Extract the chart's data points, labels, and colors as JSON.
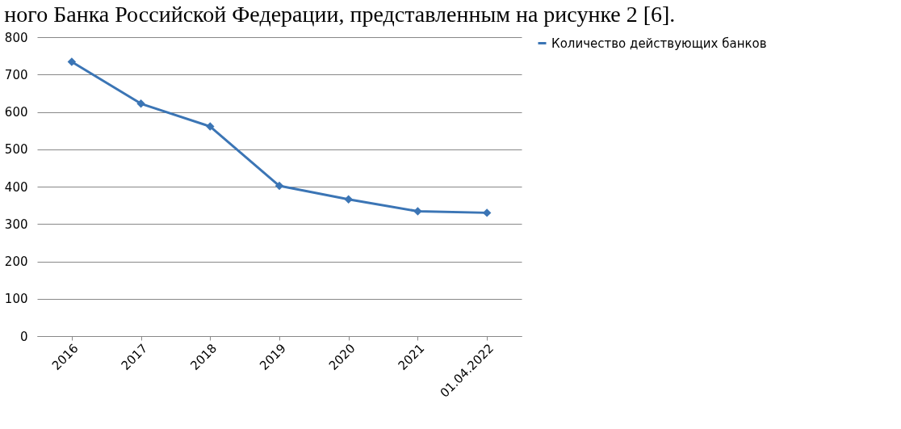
{
  "chart_data": {
    "type": "line",
    "annotations": [
      "ного Банка Российской Федерации, представленным на рисунке 2 [6]."
    ],
    "categories": [
      "2016",
      "2017",
      "2018",
      "2019",
      "2020",
      "2021",
      "01.04.2022"
    ],
    "series": [
      {
        "name": "Количество действующих банков",
        "color": "#3b75b5",
        "values": [
          734,
          622,
          561,
          402,
          366,
          334,
          330
        ]
      }
    ],
    "ylim": [
      0,
      800
    ],
    "yticks": [
      0,
      100,
      200,
      300,
      400,
      500,
      600,
      700,
      800
    ],
    "grid": "y",
    "legend": "right",
    "marker": "diamond",
    "line_style": "solid"
  }
}
